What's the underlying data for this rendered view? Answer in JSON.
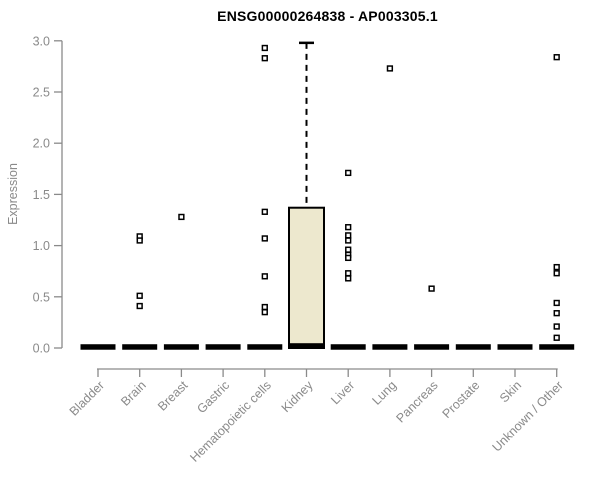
{
  "chart_data": {
    "type": "boxplot",
    "title": "ENSG00000264838 - AP003305.1",
    "ylabel": "Expression",
    "ylim": [
      0,
      3
    ],
    "yticks": [
      "0.0",
      "0.5",
      "1.0",
      "1.5",
      "2.0",
      "2.5",
      "3.0"
    ],
    "grid": false,
    "legend": null,
    "categories": [
      "Bladder",
      "Brain",
      "Breast",
      "Gastric",
      "Hematopoietic cells",
      "Kidney",
      "Liver",
      "Lung",
      "Pancreas",
      "Prostate",
      "Skin",
      "Unknown / Other"
    ],
    "boxes": [
      {
        "category": "Bladder",
        "flat": true,
        "median": 0.01
      },
      {
        "category": "Brain",
        "flat": true,
        "median": 0.01
      },
      {
        "category": "Breast",
        "flat": true,
        "median": 0.01
      },
      {
        "category": "Gastric",
        "flat": true,
        "median": 0.01
      },
      {
        "category": "Hematopoietic cells",
        "flat": true,
        "median": 0.01
      },
      {
        "category": "Kidney",
        "flat": false,
        "median": 0.02,
        "q1": 0.0,
        "q3": 1.37,
        "whisker_low": 0.0,
        "whisker_high": 2.98
      },
      {
        "category": "Liver",
        "flat": true,
        "median": 0.01
      },
      {
        "category": "Lung",
        "flat": true,
        "median": 0.01
      },
      {
        "category": "Pancreas",
        "flat": true,
        "median": 0.01
      },
      {
        "category": "Prostate",
        "flat": true,
        "median": 0.01
      },
      {
        "category": "Skin",
        "flat": true,
        "median": 0.01
      },
      {
        "category": "Unknown / Other",
        "flat": true,
        "median": 0.01
      }
    ],
    "outliers": [
      {
        "category": "Brain",
        "values": [
          1.09,
          1.05,
          0.51,
          0.41
        ]
      },
      {
        "category": "Breast",
        "values": [
          1.28
        ]
      },
      {
        "category": "Hematopoietic cells",
        "values": [
          2.93,
          2.83,
          1.33,
          1.07,
          0.7,
          0.4,
          0.35
        ]
      },
      {
        "category": "Liver",
        "values": [
          1.71,
          1.18,
          1.1,
          1.05,
          0.96,
          0.91,
          0.88,
          0.73,
          0.68
        ]
      },
      {
        "category": "Lung",
        "values": [
          2.73
        ]
      },
      {
        "category": "Pancreas",
        "values": [
          0.58
        ]
      },
      {
        "category": "Unknown / Other",
        "values": [
          2.84,
          0.79,
          0.73,
          0.44,
          0.34,
          0.21,
          0.1
        ]
      }
    ],
    "colors": {
      "background": "#ffffff",
      "box_fill": "#ede8ce",
      "box_border": "#000000",
      "median": "#000000",
      "point": "#000000",
      "axis": "#8a8a8a",
      "tick_label": "#8a8a8a",
      "title": "#000000"
    }
  }
}
